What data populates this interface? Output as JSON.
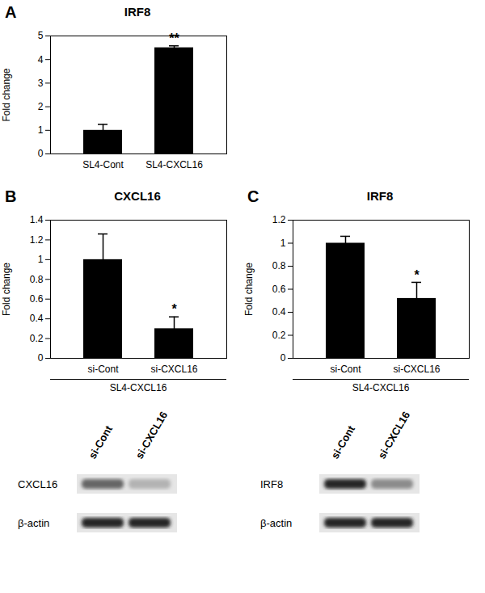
{
  "chart_data": [
    {
      "type": "bar",
      "panel": "A",
      "title": "IRF8",
      "ylabel": "Fold change",
      "categories": [
        "SL4-Cont",
        "SL4-CXCL16"
      ],
      "values": [
        1.0,
        4.5
      ],
      "errors": [
        0.25,
        0.08
      ],
      "color": "#000000",
      "ylim": [
        0,
        5
      ],
      "yticks": [
        0,
        1,
        2,
        3,
        4,
        5
      ],
      "grid": false,
      "annotations": [
        {
          "category": "SL4-CXCL16",
          "text": "**"
        }
      ]
    },
    {
      "type": "bar",
      "panel": "B",
      "title": "CXCL16",
      "ylabel": "Fold change",
      "categories": [
        "si-Cont",
        "si-CXCL16"
      ],
      "values": [
        1.0,
        0.3
      ],
      "errors": [
        0.26,
        0.12
      ],
      "color": "#000000",
      "ylim": [
        0,
        1.4
      ],
      "yticks": [
        0,
        0.2,
        0.4,
        0.6,
        0.8,
        1,
        1.2,
        1.4
      ],
      "grid": false,
      "group_label": "SL4-CXCL16",
      "annotations": [
        {
          "category": "si-CXCL16",
          "text": "*"
        }
      ]
    },
    {
      "type": "bar",
      "panel": "C",
      "title": "IRF8",
      "ylabel": "Fold change",
      "categories": [
        "si-Cont",
        "si-CXCL16"
      ],
      "values": [
        1.0,
        0.52
      ],
      "errors": [
        0.06,
        0.14
      ],
      "color": "#000000",
      "ylim": [
        0,
        1.2
      ],
      "yticks": [
        0,
        0.2,
        0.4,
        0.6,
        0.8,
        1,
        1.2
      ],
      "grid": false,
      "group_label": "SL4-CXCL16",
      "annotations": [
        {
          "category": "si-CXCL16",
          "text": "*"
        }
      ]
    }
  ],
  "western_blots": [
    {
      "panel": "B",
      "lanes": [
        "si-Cont",
        "si-CXCL16"
      ],
      "rows": [
        {
          "label": "CXCL16",
          "intensities": [
            0.6,
            0.3
          ]
        },
        {
          "label": "β-actin",
          "intensities": [
            0.85,
            0.85
          ]
        }
      ]
    },
    {
      "panel": "C",
      "lanes": [
        "si-Cont",
        "si-CXCL16"
      ],
      "rows": [
        {
          "label": "IRF8",
          "intensities": [
            0.85,
            0.45
          ]
        },
        {
          "label": "β-actin",
          "intensities": [
            0.85,
            0.85
          ]
        }
      ]
    }
  ]
}
